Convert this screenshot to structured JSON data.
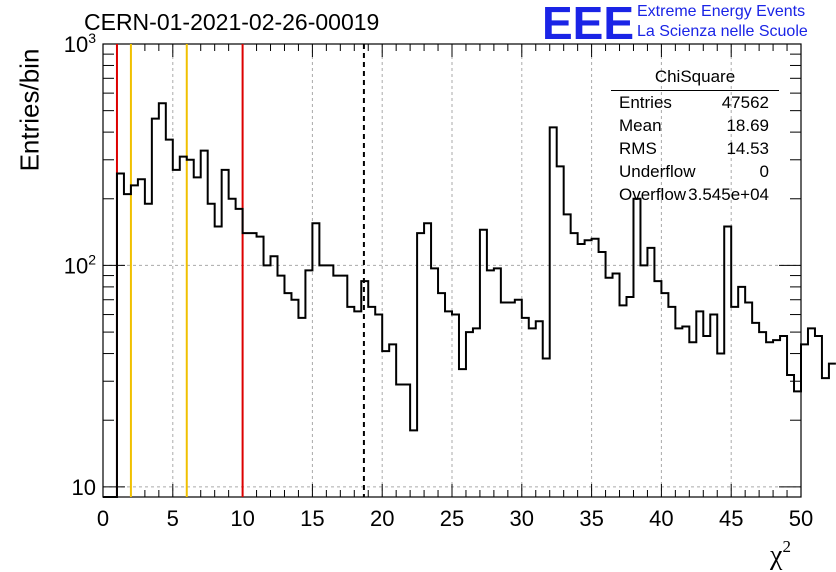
{
  "title": "CERN-01-2021-02-26-00019",
  "logo": {
    "text": "EEE",
    "line1": "Extreme Energy Events",
    "line2": "La Scienza nelle Scuole",
    "color": "#1a24e6"
  },
  "stats": {
    "title": "ChiSquare",
    "rows": [
      {
        "label": "Entries",
        "value": "47562"
      },
      {
        "label": "Mean",
        "value": "18.69"
      },
      {
        "label": "RMS",
        "value": "14.53"
      },
      {
        "label": "Underflow",
        "value": "0"
      },
      {
        "label": "Overflow",
        "value": "3.545e+04"
      }
    ]
  },
  "chart_data": {
    "type": "histogram",
    "xlabel": "χ²",
    "ylabel": "Entries/bin",
    "xlim": [
      0,
      50
    ],
    "ylim": [
      9,
      1000
    ],
    "log_y": true,
    "grid": true,
    "bin_width": 0.5,
    "x_ticks": [
      "0",
      "5",
      "10",
      "15",
      "20",
      "25",
      "30",
      "35",
      "40",
      "45",
      "50"
    ],
    "y_ticks": [
      "10",
      "10²",
      "10³"
    ],
    "values": [
      0,
      0,
      260,
      210,
      230,
      245,
      190,
      460,
      540,
      370,
      270,
      310,
      300,
      250,
      330,
      190,
      150,
      270,
      200,
      180,
      140,
      140,
      135,
      100,
      110,
      90,
      75,
      70,
      58,
      95,
      155,
      100,
      100,
      90,
      90,
      65,
      62,
      85,
      65,
      60,
      41,
      44,
      29,
      29,
      18,
      140,
      155,
      97,
      75,
      62,
      60,
      34,
      50,
      52,
      145,
      95,
      97,
      68,
      68,
      70,
      58,
      52,
      56,
      38,
      420,
      280,
      170,
      140,
      125,
      130,
      132,
      115,
      88,
      92,
      66,
      72,
      200,
      100,
      120,
      85,
      75,
      65,
      52,
      53,
      45,
      62,
      48,
      60,
      40,
      150,
      65,
      80,
      68,
      55,
      50,
      45,
      46,
      48,
      32,
      27,
      44,
      52,
      48,
      31,
      36
    ],
    "line_markers": [
      {
        "x": 1,
        "color": "#dd0000"
      },
      {
        "x": 2,
        "color": "#f0c000"
      },
      {
        "x": 6,
        "color": "#f0c000"
      },
      {
        "x": 10,
        "color": "#dd0000"
      }
    ],
    "mean_marker": {
      "x": 18.69,
      "style": "dashed",
      "color": "#000000"
    }
  }
}
